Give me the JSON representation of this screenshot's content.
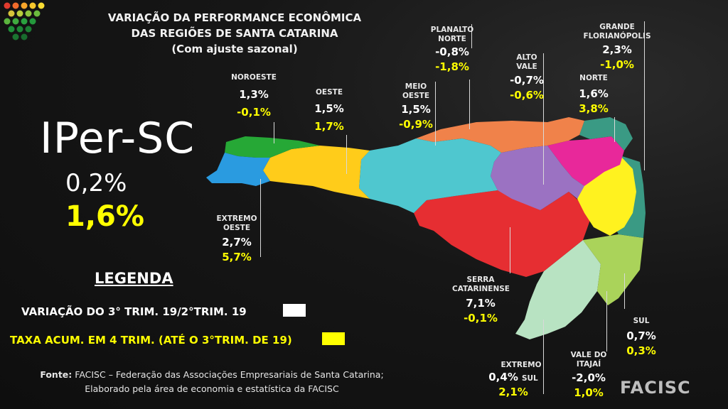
{
  "title": {
    "line1": "VARIAÇÃO DA PERFORMANCE ECONÔMICA",
    "line2": "DAS REGIÕES DE SANTA CATARINA",
    "line3": "(Com ajuste sazonal)"
  },
  "index": {
    "name": "IPer-SC",
    "variation": "0,2%",
    "accumulated": "1,6%"
  },
  "legend": {
    "title": "LEGENDA",
    "variation_label": "VARIAÇÃO DO 3° TRIM. 19/2°TRIM. 19",
    "variation_color": "#ffffff",
    "accumulated_label": "TAXA ACUM. EM 4 TRIM. (ATÉ O 3°TRIM. DE 19)",
    "accumulated_color": "#ffff00"
  },
  "source": {
    "prefix": "Fonte:",
    "line1": " FACISC – Federação das Associações Empresariais de Santa Catarina;",
    "line2": "Elaborado pela área de economia e estatística da FACISC"
  },
  "brand": "FACISC",
  "regions": [
    {
      "key": "noroeste",
      "name": [
        "NOROESTE"
      ],
      "variation": "1,3%",
      "accumulated": "-0,1%",
      "color": "#26a836"
    },
    {
      "key": "oeste",
      "name": [
        "OESTE"
      ],
      "variation": "1,5%",
      "accumulated": "1,7%",
      "color": "#ffcc1a"
    },
    {
      "key": "meio_oeste",
      "name": [
        "MEIO",
        "OESTE"
      ],
      "variation": "1,5%",
      "accumulated": "-0,9%",
      "color": "#4fc7cf"
    },
    {
      "key": "planalto_norte",
      "name": [
        "PLANALTO",
        "NORTE"
      ],
      "variation": "-0,8%",
      "accumulated": "-1,8%",
      "color": "#f0824a"
    },
    {
      "key": "alto_vale",
      "name": [
        "ALTO",
        "VALE"
      ],
      "variation": "-0,7%",
      "accumulated": "-0,6%",
      "color": "#9b72c2"
    },
    {
      "key": "norte",
      "name": [
        "NORTE"
      ],
      "variation": "1,6%",
      "accumulated": "3,8%",
      "color": "#e8289a"
    },
    {
      "key": "grande_florianopolis",
      "name": [
        "GRANDE",
        "FLORIANÓPOLIS"
      ],
      "variation": "2,3%",
      "accumulated": "-1,0%",
      "color": "#3a9a84"
    },
    {
      "key": "extremo_oeste",
      "name": [
        "EXTREMO",
        "OESTE"
      ],
      "variation": "2,7%",
      "accumulated": "5,7%",
      "color": "#2a9be0"
    },
    {
      "key": "serra_catarinense",
      "name": [
        "SERRA",
        "CATARINENSE"
      ],
      "variation": "7,1%",
      "accumulated": "-0,1%",
      "color": "#e62e32"
    },
    {
      "key": "sul",
      "name": [
        "SUL"
      ],
      "variation": "0,7%",
      "accumulated": "0,3%",
      "color": "#aad35a"
    },
    {
      "key": "extremo_sul",
      "name": [
        "EXTREMO",
        "SUL"
      ],
      "variation": "0,4%",
      "accumulated": "2,1%",
      "color": "#b8e3c2"
    },
    {
      "key": "vale_do_itajai",
      "name": [
        "VALE DO",
        "ITAJAÍ"
      ],
      "variation": "-2,0%",
      "accumulated": "1,0%",
      "color": "#fff21f"
    }
  ]
}
